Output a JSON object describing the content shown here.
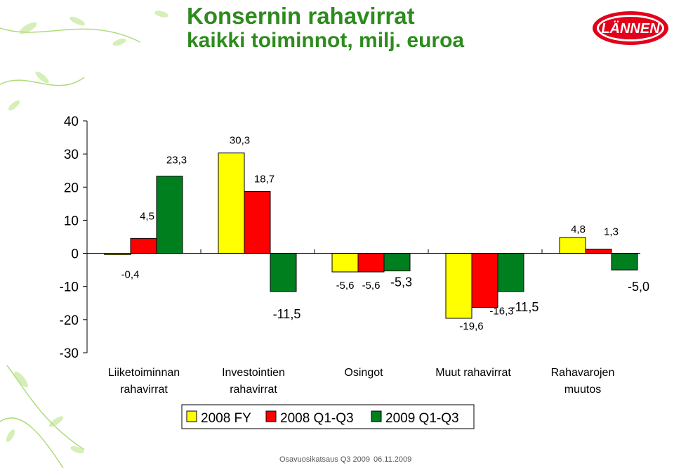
{
  "slide": {
    "title_line1": "Konsernin rahavirrat",
    "title_line2": "kaikki toiminnot, milj. euroa",
    "logo_text": "LÄNNEN",
    "footer_left": "Osavuosikatsaus Q3 2009",
    "footer_right": "06.11.2009"
  },
  "chart_data": {
    "type": "bar",
    "title": "",
    "xlabel": "",
    "ylabel": "",
    "ylim": [
      -30,
      40
    ],
    "yticks": [
      40,
      30,
      20,
      10,
      0,
      -10,
      -20,
      -30
    ],
    "grid": false,
    "legend_position": "bottom",
    "categories": [
      [
        "Liiketoiminnan",
        "rahavirrat"
      ],
      [
        "Investointien",
        "rahavirrat"
      ],
      [
        "Osingot"
      ],
      [
        "Muut rahavirrat"
      ],
      [
        "Rahavarojen",
        "muutos"
      ]
    ],
    "series": [
      {
        "name": "2008 FY",
        "color": "#ffff00",
        "values": [
          -0.4,
          30.3,
          -5.6,
          -19.6,
          4.8
        ],
        "labels": [
          "-0,4",
          "30,3",
          "-5,6",
          "-19,6",
          "4,8"
        ]
      },
      {
        "name": "2008 Q1-Q3",
        "color": "#ff0000",
        "values": [
          4.5,
          18.7,
          -5.6,
          -16.3,
          1.3
        ],
        "labels": [
          "4,5",
          "18,7",
          "-5,6",
          "-16,3",
          "1,3"
        ]
      },
      {
        "name": "2009 Q1-Q3",
        "color": "#007f1f",
        "values": [
          23.3,
          -11.5,
          -5.3,
          -11.5,
          -5.0
        ],
        "labels": [
          "23,3",
          "-11,5",
          "-5,3",
          "-11,5",
          "-5,0"
        ]
      }
    ]
  }
}
